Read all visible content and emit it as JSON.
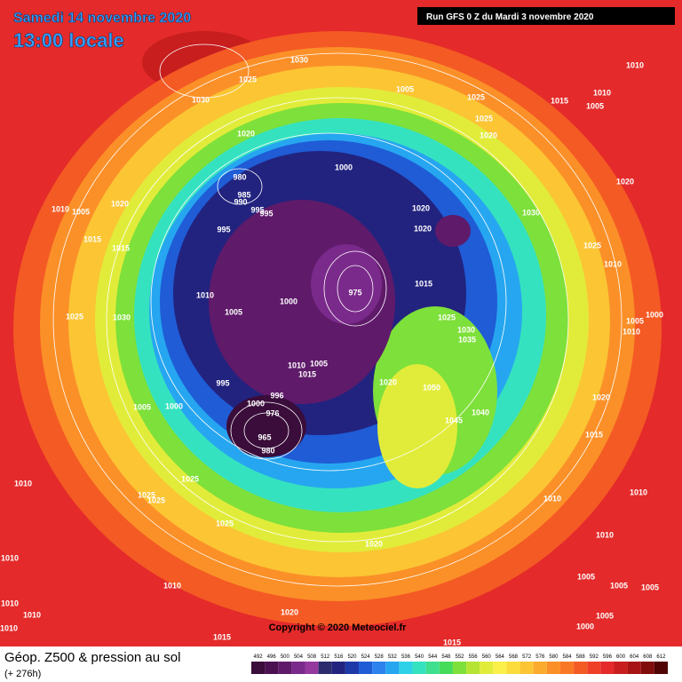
{
  "header": {
    "date": "Samedi 14 novembre 2020",
    "time": "13:00 locale",
    "run": "Run GFS 0 Z du Mardi 3 novembre 2020"
  },
  "footer": {
    "title": "Géop. Z500 & pression au sol",
    "lead": "(+ 276h)",
    "copyright": "Copyright © 2020 Meteociel.fr"
  },
  "legend": {
    "levels": [
      492,
      496,
      500,
      504,
      508,
      512,
      516,
      520,
      524,
      528,
      532,
      536,
      540,
      544,
      548,
      552,
      556,
      560,
      564,
      568,
      572,
      576,
      580,
      584,
      588,
      592,
      596,
      600,
      604,
      608,
      612
    ],
    "colors": [
      "#3a0d3a",
      "#4b1050",
      "#5f1a6a",
      "#7a2a8a",
      "#96399f",
      "#2b2b6d",
      "#22237f",
      "#1e3aa8",
      "#1f5cd6",
      "#2d82ee",
      "#26a6f0",
      "#2fd1e8",
      "#35e2c0",
      "#3ee08e",
      "#45dc5a",
      "#7ee03a",
      "#b5e434",
      "#e1ec3a",
      "#fbf04a",
      "#fbdc3a",
      "#fbc534",
      "#fbab2e",
      "#fb9028",
      "#f97826",
      "#f45a24",
      "#ef3f27",
      "#e42a2a",
      "#c81e1e",
      "#a81414",
      "#800c0c",
      "#500404"
    ]
  },
  "isobar_labels": [
    1030,
    1025,
    1030,
    1020,
    1005,
    1025,
    1025,
    1020,
    1015,
    1010,
    1010,
    1005,
    1000,
    980,
    985,
    990,
    995,
    995,
    995,
    1020,
    1020,
    1030,
    1020,
    1010,
    1005,
    1020,
    1015,
    1015,
    1025,
    1010,
    1010,
    1005,
    1000,
    975,
    1015,
    1025,
    1030,
    1035,
    1000,
    1005,
    1010,
    1025,
    1030,
    1010,
    1005,
    1015,
    995,
    1020,
    1050,
    1020,
    1045,
    1040,
    996,
    1000,
    976,
    965,
    980,
    1005,
    1000,
    1015,
    1025,
    1025,
    1025,
    1010,
    1010,
    1010,
    1025,
    1010,
    1020,
    1010,
    1010,
    1005,
    1005,
    1005,
    1010,
    1010,
    1020,
    1005,
    1000,
    1015,
    1015,
    1010
  ]
}
